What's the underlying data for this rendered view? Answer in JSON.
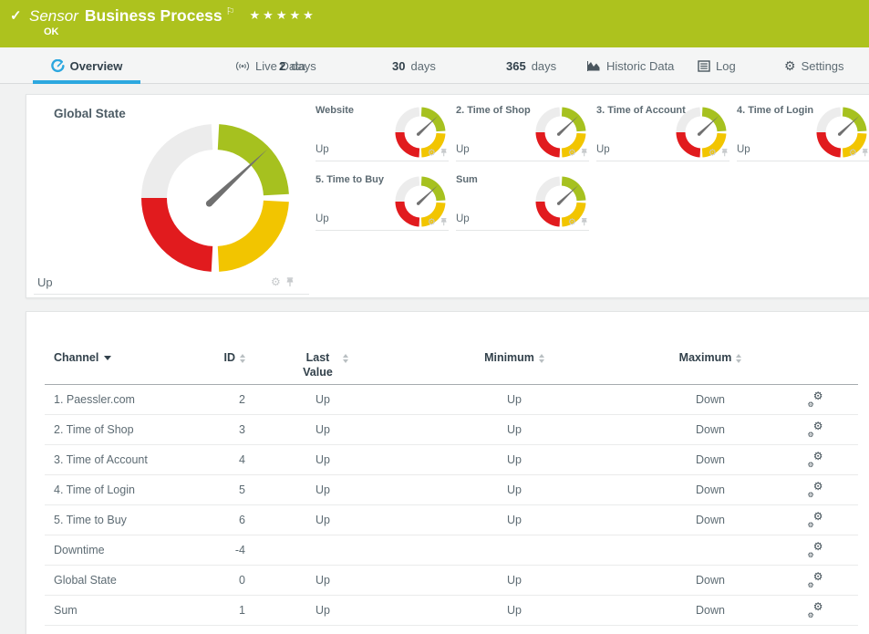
{
  "header": {
    "kind_label": "Sensor",
    "title": "Business Process",
    "status_text": "OK",
    "stars": "★★★★★",
    "bar_color": "#adc21e"
  },
  "tabs": [
    {
      "label": "Overview",
      "icon": "gauge-icon",
      "active": true
    },
    {
      "label": "Live Data",
      "icon": "live-signal-icon"
    },
    {
      "prefix": "2",
      "label": "days"
    },
    {
      "prefix": "30",
      "label": "days"
    },
    {
      "prefix": "365",
      "label": "days"
    },
    {
      "label": "Historic Data",
      "icon": "area-chart-icon"
    },
    {
      "label": "Log",
      "icon": "log-icon"
    },
    {
      "label": "Settings",
      "icon": "gear-icon"
    }
  ],
  "overview": {
    "global_gauge": {
      "title": "Global State",
      "status": "Up"
    },
    "mini_gauges": [
      {
        "title": "Website",
        "status": "Up"
      },
      {
        "title": "2. Time of Shop",
        "status": "Up"
      },
      {
        "title": "3. Time of Account",
        "status": "Up"
      },
      {
        "title": "4. Time of Login",
        "status": "Up"
      },
      {
        "title": "5. Time to Buy",
        "status": "Up"
      },
      {
        "title": "Sum",
        "status": "Up"
      }
    ],
    "gauge_colors": {
      "green": "#a6c11f",
      "yellow": "#f2c500",
      "red": "#e11b1e",
      "gray": "#ececec",
      "needle": "#707070"
    },
    "needle_angle_deg": 47,
    "accent_blue": "#2ca7df"
  },
  "table": {
    "columns": [
      "Channel",
      "ID",
      "Last Value",
      "Minimum",
      "Maximum"
    ],
    "sorted_by": "Channel",
    "rows": [
      {
        "channel": "1. Paessler.com",
        "id": "2",
        "last": "Up",
        "min": "Up",
        "max": "Down"
      },
      {
        "channel": "2. Time of Shop",
        "id": "3",
        "last": "Up",
        "min": "Up",
        "max": "Down"
      },
      {
        "channel": "3. Time of Account",
        "id": "4",
        "last": "Up",
        "min": "Up",
        "max": "Down"
      },
      {
        "channel": "4. Time of Login",
        "id": "5",
        "last": "Up",
        "min": "Up",
        "max": "Down"
      },
      {
        "channel": "5. Time to Buy",
        "id": "6",
        "last": "Up",
        "min": "Up",
        "max": "Down"
      },
      {
        "channel": "Downtime",
        "id": "-4",
        "last": "",
        "min": "",
        "max": ""
      },
      {
        "channel": "Global State",
        "id": "0",
        "last": "Up",
        "min": "Up",
        "max": "Down"
      },
      {
        "channel": "Sum",
        "id": "1",
        "last": "Up",
        "min": "Up",
        "max": "Down"
      }
    ]
  }
}
